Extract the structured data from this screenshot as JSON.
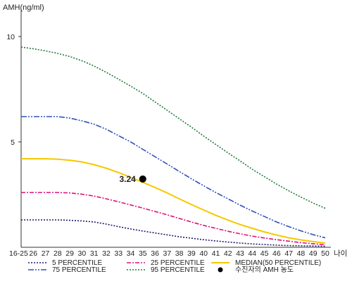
{
  "chart_data": {
    "type": "line",
    "ylabel": "AMH(ng/ml)",
    "xlabel": "나이",
    "categories": [
      "16-25",
      "26",
      "27",
      "28",
      "29",
      "30",
      "31",
      "32",
      "33",
      "34",
      "35",
      "36",
      "37",
      "38",
      "39",
      "40",
      "41",
      "42",
      "43",
      "44",
      "45",
      "46",
      "47",
      "48",
      "49",
      "50"
    ],
    "yticks": [
      "10",
      "5"
    ],
    "ylim": [
      0,
      10.8
    ],
    "grid": false,
    "legend_position": "bottom",
    "series": [
      {
        "name": "5 PERCENTILE",
        "color": "#1a1a6e",
        "dash": "2,2",
        "values": [
          1.3,
          1.3,
          1.3,
          1.3,
          1.28,
          1.25,
          1.2,
          1.1,
          0.98,
          0.87,
          0.77,
          0.68,
          0.59,
          0.5,
          0.43,
          0.36,
          0.3,
          0.25,
          0.2,
          0.16,
          0.13,
          0.1,
          0.08,
          0.07,
          0.06,
          0.05
        ]
      },
      {
        "name": "25 PERCENTILE",
        "color": "#e0107a",
        "dash": "6,2,2,2",
        "values": [
          2.6,
          2.6,
          2.6,
          2.6,
          2.58,
          2.52,
          2.43,
          2.3,
          2.16,
          2.01,
          1.86,
          1.7,
          1.54,
          1.37,
          1.2,
          1.04,
          0.9,
          0.76,
          0.64,
          0.53,
          0.44,
          0.36,
          0.29,
          0.22,
          0.17,
          0.12
        ]
      },
      {
        "name": "MEDIAN(50 PERCENTILE)",
        "color": "#f5c800",
        "dash": "",
        "values": [
          4.2,
          4.2,
          4.2,
          4.18,
          4.13,
          4.05,
          3.92,
          3.75,
          3.55,
          3.32,
          3.08,
          2.84,
          2.58,
          2.3,
          2.03,
          1.77,
          1.52,
          1.29,
          1.08,
          0.9,
          0.73,
          0.58,
          0.45,
          0.35,
          0.27,
          0.2
        ]
      },
      {
        "name": "75 PERCENTILE",
        "color": "#3050b8",
        "dash": "8,2,2,2,2,2",
        "values": [
          6.2,
          6.2,
          6.2,
          6.2,
          6.13,
          6.0,
          5.84,
          5.6,
          5.3,
          5.0,
          4.65,
          4.3,
          3.95,
          3.6,
          3.25,
          2.92,
          2.6,
          2.3,
          2.0,
          1.72,
          1.46,
          1.2,
          0.98,
          0.78,
          0.6,
          0.45
        ]
      },
      {
        "name": "95 PERCENTILE",
        "color": "#1e7a3c",
        "dash": "2,2",
        "values": [
          9.5,
          9.42,
          9.32,
          9.2,
          9.05,
          8.85,
          8.6,
          8.3,
          7.98,
          7.65,
          7.3,
          6.9,
          6.5,
          6.1,
          5.7,
          5.28,
          4.88,
          4.48,
          4.1,
          3.7,
          3.35,
          3.0,
          2.68,
          2.38,
          2.1,
          1.85
        ]
      }
    ],
    "point": {
      "x": "35",
      "y": 3.24,
      "label": "3.24",
      "legend": "수진자의 AMH 농도"
    }
  }
}
